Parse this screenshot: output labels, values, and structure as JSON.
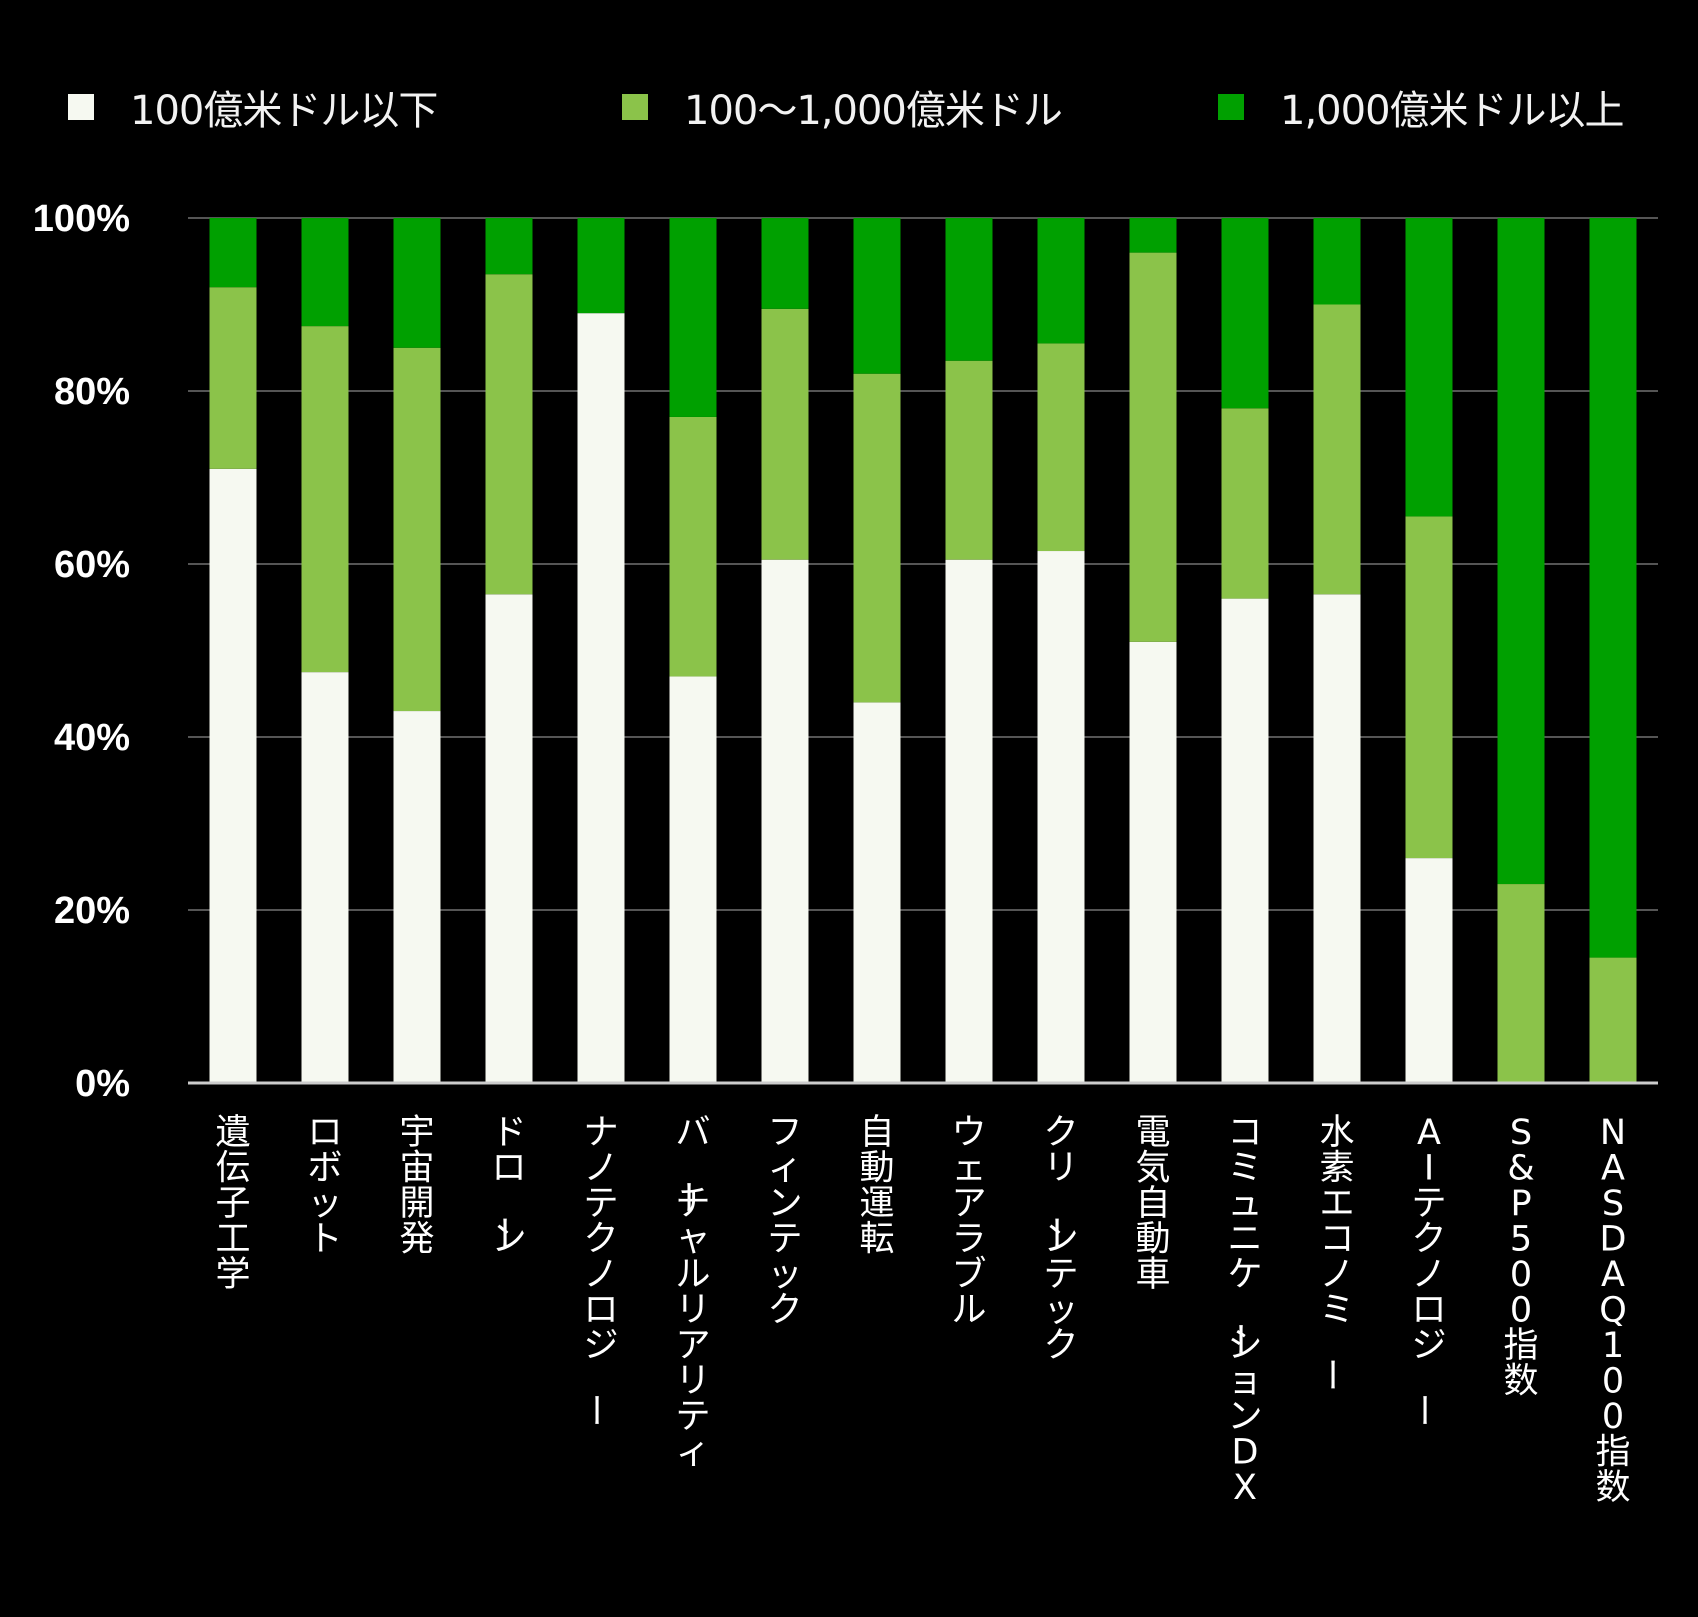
{
  "chart_data": {
    "type": "bar",
    "stacked": true,
    "orientation": "vertical",
    "categories": [
      "遺伝子工学",
      "ロボット",
      "宇宙開発",
      "ドローン",
      "ナノテクノロジー",
      "バーチャルリアリティ",
      "フィンテック",
      "自動運転",
      "ウェアラブル",
      "クリーンテック",
      "電気自動車",
      "コミュニケーションDX",
      "水素エコノミー",
      "AIテクノロジー",
      "S&P500指数",
      "NASDAQ100指数"
    ],
    "series": [
      {
        "name": "100億米ドル以下",
        "color": "#f6f9f1",
        "values": [
          71,
          47.5,
          43,
          56.5,
          89,
          47,
          60.5,
          44,
          60.5,
          61.5,
          51,
          56,
          56.5,
          26,
          0,
          0
        ]
      },
      {
        "name": "100〜1,000億米ドル",
        "color": "#8bc34a",
        "values": [
          21,
          40,
          42,
          37,
          0,
          30,
          29,
          38,
          23,
          24,
          45,
          22,
          33.5,
          39.5,
          23,
          14.5
        ]
      },
      {
        "name": "1,000億米ドル以上",
        "color": "#00a000",
        "values": [
          8,
          12.5,
          15,
          6.5,
          11,
          23,
          10.5,
          18,
          16.5,
          14.5,
          4,
          22,
          10,
          34.5,
          77,
          85.5
        ]
      }
    ],
    "ylim": [
      0,
      100
    ],
    "yticks": [
      "0%",
      "20%",
      "40%",
      "60%",
      "80%",
      "100%"
    ],
    "xlabel": "",
    "ylabel": "",
    "title": "",
    "grid": true,
    "legend_position": "top",
    "colors": {
      "background": "#000000",
      "grid": "#555555",
      "axis": "#cccccc",
      "text": "#ffffff"
    }
  }
}
